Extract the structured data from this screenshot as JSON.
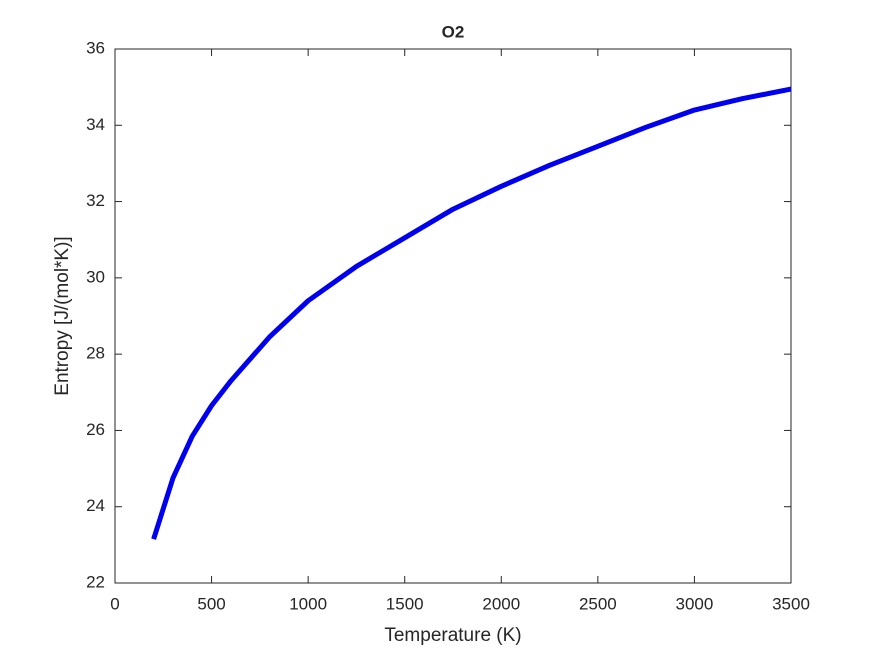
{
  "chart_data": {
    "type": "line",
    "title": "O2",
    "x_label": "Temperature (K)",
    "y_label": "Entropy [J/(mol*K)]",
    "x": [
      200,
      300,
      400,
      500,
      600,
      800,
      1000,
      1250,
      1500,
      1750,
      2000,
      2250,
      2500,
      2750,
      3000,
      3250,
      3500
    ],
    "series": [
      {
        "name": "O2",
        "color": "#0000ee",
        "values": [
          23.15,
          24.75,
          25.85,
          26.65,
          27.3,
          28.45,
          29.4,
          30.3,
          31.05,
          31.8,
          32.4,
          32.95,
          33.45,
          33.95,
          34.4,
          34.7,
          34.95
        ]
      }
    ],
    "xlim": [
      0,
      3500
    ],
    "xticks": [
      0,
      500,
      1000,
      1500,
      2000,
      2500,
      3000,
      3500
    ],
    "ylim": [
      22,
      36
    ],
    "yticks": [
      22,
      24,
      26,
      28,
      30,
      32,
      34,
      36
    ],
    "grid": false
  }
}
